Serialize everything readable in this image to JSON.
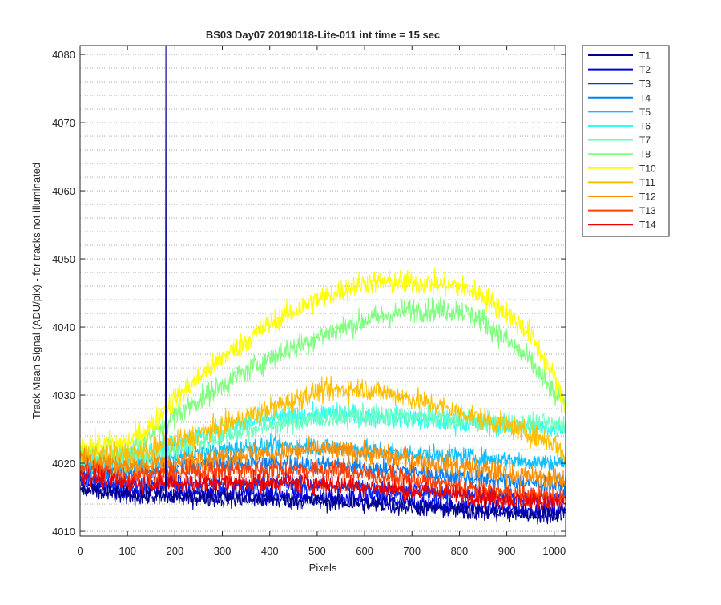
{
  "chart_data": {
    "type": "line",
    "title": "BS03 Day07 20190118-Lite-011 int time = 15 sec",
    "xlabel": "Pixels",
    "ylabel": "Track Mean Signal (ADU/pix) - for tracks not illuminated",
    "xlim": [
      0,
      1024
    ],
    "ylim": [
      4009.3,
      4081.3
    ],
    "x_ticks": [
      0,
      100,
      200,
      300,
      400,
      500,
      600,
      700,
      800,
      900,
      1000
    ],
    "y_ticks": [
      4010,
      4020,
      4030,
      4040,
      4050,
      4060,
      4070,
      4080
    ],
    "grid": "dotted y-minor grid",
    "legend_position": "outside-top-right",
    "spike": {
      "series": "T1",
      "x": 181,
      "from": 4027.5,
      "to": 4081.3
    },
    "series": [
      {
        "name": "T1",
        "color": "#00008f",
        "noise": 1.2,
        "x": [
          0,
          100,
          200,
          300,
          400,
          500,
          600,
          700,
          800,
          900,
          1000,
          1024
        ],
        "y": [
          4016.0,
          4015.2,
          4015.0,
          4014.8,
          4014.6,
          4014.4,
          4014.0,
          4013.6,
          4013.0,
          4012.6,
          4012.4,
          4012.8
        ]
      },
      {
        "name": "T2",
        "color": "#0000df",
        "noise": 1.2,
        "x": [
          0,
          100,
          200,
          300,
          400,
          500,
          600,
          700,
          800,
          900,
          1000,
          1024
        ],
        "y": [
          4017.0,
          4015.8,
          4015.6,
          4015.6,
          4015.4,
          4015.0,
          4014.6,
          4014.2,
          4013.6,
          4013.2,
          4013.0,
          4013.4
        ]
      },
      {
        "name": "T3",
        "color": "#0030ff",
        "noise": 1.2,
        "x": [
          0,
          100,
          200,
          300,
          400,
          500,
          600,
          700,
          800,
          900,
          1000,
          1024
        ],
        "y": [
          4018.0,
          4016.8,
          4017.0,
          4017.0,
          4017.0,
          4016.8,
          4016.4,
          4016.0,
          4015.4,
          4015.0,
          4014.8,
          4015.2
        ]
      },
      {
        "name": "T4",
        "color": "#0080ff",
        "noise": 1.3,
        "x": [
          0,
          100,
          200,
          300,
          400,
          500,
          600,
          700,
          800,
          900,
          1000,
          1024
        ],
        "y": [
          4019.5,
          4018.5,
          4019.5,
          4020.0,
          4020.0,
          4019.8,
          4019.4,
          4018.8,
          4018.0,
          4017.4,
          4016.8,
          4016.8
        ]
      },
      {
        "name": "T5",
        "color": "#10bfff",
        "noise": 1.3,
        "x": [
          0,
          100,
          200,
          300,
          400,
          500,
          600,
          700,
          800,
          900,
          1000,
          1024
        ],
        "y": [
          4020.0,
          4019.5,
          4021.0,
          4022.0,
          4022.5,
          4022.5,
          4022.0,
          4021.5,
          4021.0,
          4020.5,
          4020.0,
          4020.2
        ]
      },
      {
        "name": "T6",
        "color": "#30ffef",
        "noise": 1.4,
        "x": [
          0,
          100,
          200,
          300,
          400,
          500,
          600,
          700,
          800,
          900,
          1000,
          1024
        ],
        "y": [
          4021.0,
          4021.0,
          4023.0,
          4025.0,
          4026.5,
          4027.2,
          4027.0,
          4026.5,
          4026.0,
          4025.5,
          4025.0,
          4025.5
        ]
      },
      {
        "name": "T7",
        "color": "#70ffc0",
        "noise": 1.4,
        "x": [
          0,
          100,
          200,
          300,
          400,
          500,
          600,
          700,
          800,
          900,
          1000,
          1024
        ],
        "y": [
          4020.5,
          4020.5,
          4022.0,
          4024.0,
          4025.5,
          4026.5,
          4027.0,
          4026.8,
          4026.5,
          4026.0,
          4025.6,
          4026.0
        ]
      },
      {
        "name": "T8",
        "color": "#80ff80",
        "noise": 1.6,
        "x": [
          0,
          100,
          150,
          200,
          300,
          400,
          500,
          600,
          700,
          800,
          850,
          900,
          950,
          1000,
          1024
        ],
        "y": [
          4021.5,
          4022.0,
          4024.0,
          4027.0,
          4031.5,
          4035.5,
          4038.5,
          4041.0,
          4042.5,
          4042.5,
          4041.0,
          4038.0,
          4035.0,
          4030.0,
          4028.5
        ]
      },
      {
        "name": "T10",
        "color": "#ffff00",
        "noise": 1.6,
        "x": [
          0,
          100,
          150,
          200,
          300,
          400,
          500,
          600,
          700,
          800,
          850,
          900,
          950,
          1000,
          1024
        ],
        "y": [
          4022.5,
          4023.0,
          4025.5,
          4029.5,
          4035.5,
          4040.5,
          4044.0,
          4046.5,
          4046.5,
          4046.0,
          4044.5,
          4042.0,
          4039.0,
          4032.5,
          4028.0
        ]
      },
      {
        "name": "T11",
        "color": "#ffbf00",
        "noise": 1.5,
        "x": [
          0,
          100,
          200,
          300,
          400,
          500,
          600,
          700,
          800,
          900,
          1000,
          1024
        ],
        "y": [
          4021.5,
          4021.0,
          4023.0,
          4025.5,
          4028.0,
          4030.5,
          4031.0,
          4029.5,
          4027.5,
          4025.5,
          4023.0,
          4021.0
        ]
      },
      {
        "name": "T12",
        "color": "#ff8f00",
        "noise": 1.4,
        "x": [
          0,
          100,
          200,
          300,
          400,
          500,
          600,
          700,
          800,
          900,
          1000,
          1024
        ],
        "y": [
          4021.0,
          4019.5,
          4020.0,
          4021.0,
          4021.5,
          4022.0,
          4021.5,
          4020.5,
          4019.5,
          4018.5,
          4017.5,
          4017.8
        ]
      },
      {
        "name": "T13",
        "color": "#ff4000",
        "noise": 1.4,
        "x": [
          0,
          100,
          200,
          300,
          400,
          500,
          600,
          700,
          800,
          900,
          1000,
          1024
        ],
        "y": [
          4019.5,
          4018.0,
          4018.5,
          4019.0,
          4019.0,
          4019.0,
          4018.5,
          4017.5,
          4016.5,
          4015.5,
          4015.0,
          4015.0
        ]
      },
      {
        "name": "T14",
        "color": "#ef0000",
        "noise": 1.3,
        "x": [
          0,
          100,
          200,
          300,
          400,
          500,
          600,
          700,
          800,
          900,
          1000,
          1024
        ],
        "y": [
          4018.5,
          4017.0,
          4017.0,
          4017.2,
          4017.2,
          4017.0,
          4016.6,
          4016.0,
          4015.4,
          4014.6,
          4014.2,
          4014.2
        ]
      }
    ]
  }
}
